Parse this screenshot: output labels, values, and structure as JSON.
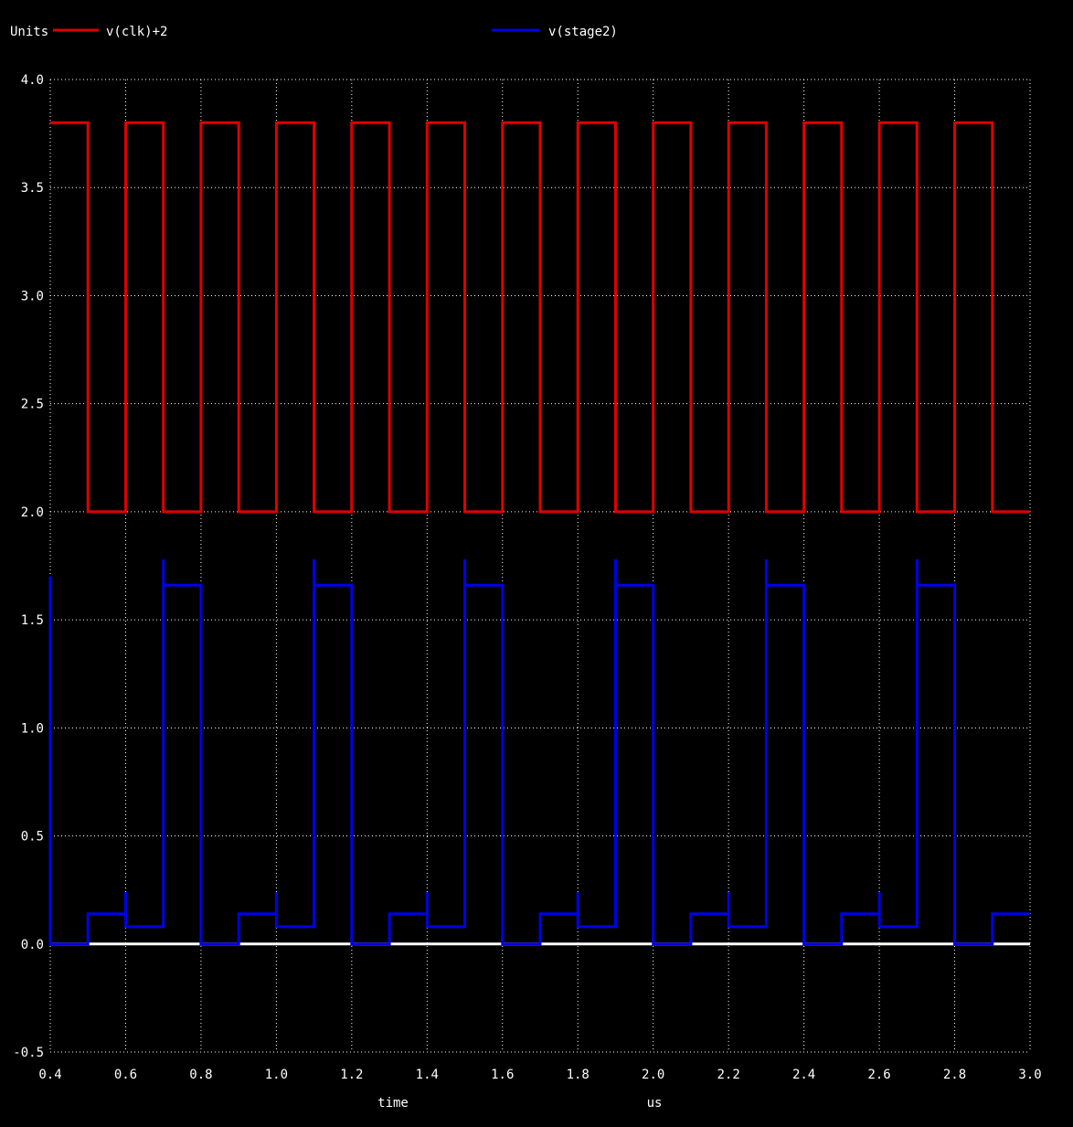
{
  "legend": {
    "units_label": "Units",
    "entries": [
      {
        "name": "v(clk)+2",
        "color": "#e00000"
      },
      {
        "name": "v(stage2)",
        "color": "#0000e8"
      }
    ]
  },
  "axes": {
    "xlabel": "time",
    "xunit": "us"
  },
  "chart_data": {
    "type": "line",
    "title": "",
    "xlabel": "time",
    "xunit": "us",
    "ylabel": "Units",
    "xlim": [
      0.4,
      3.0
    ],
    "ylim": [
      -0.5,
      4.0
    ],
    "x_ticks": [
      "0.4",
      "0.6",
      "0.8",
      "1.0",
      "1.2",
      "1.4",
      "1.6",
      "1.8",
      "2.0",
      "2.2",
      "2.4",
      "2.6",
      "2.8",
      "3.0"
    ],
    "y_ticks": [
      "-0.5",
      "0.0",
      "0.5",
      "1.0",
      "1.5",
      "2.0",
      "2.5",
      "3.0",
      "3.5",
      "4.0"
    ],
    "grid": true,
    "background": "#000000",
    "zero_line_color": "#ffffff",
    "legend_position": "top",
    "series": [
      {
        "name": "v(clk)+2",
        "color": "#e00000",
        "step": true,
        "points": [
          [
            0.4,
            3.8
          ],
          [
            0.5,
            3.8
          ],
          [
            0.5,
            2.0
          ],
          [
            0.6,
            2.0
          ],
          [
            0.6,
            3.8
          ],
          [
            0.7,
            3.8
          ],
          [
            0.7,
            2.0
          ],
          [
            0.8,
            2.0
          ],
          [
            0.8,
            3.8
          ],
          [
            0.9,
            3.8
          ],
          [
            0.9,
            2.0
          ],
          [
            1.0,
            2.0
          ],
          [
            1.0,
            3.8
          ],
          [
            1.1,
            3.8
          ],
          [
            1.1,
            2.0
          ],
          [
            1.2,
            2.0
          ],
          [
            1.2,
            3.8
          ],
          [
            1.3,
            3.8
          ],
          [
            1.3,
            2.0
          ],
          [
            1.4,
            2.0
          ],
          [
            1.4,
            3.8
          ],
          [
            1.5,
            3.8
          ],
          [
            1.5,
            2.0
          ],
          [
            1.6,
            2.0
          ],
          [
            1.6,
            3.8
          ],
          [
            1.7,
            3.8
          ],
          [
            1.7,
            2.0
          ],
          [
            1.8,
            2.0
          ],
          [
            1.8,
            3.8
          ],
          [
            1.9,
            3.8
          ],
          [
            1.9,
            2.0
          ],
          [
            2.0,
            2.0
          ],
          [
            2.0,
            3.8
          ],
          [
            2.1,
            3.8
          ],
          [
            2.1,
            2.0
          ],
          [
            2.2,
            2.0
          ],
          [
            2.2,
            3.8
          ],
          [
            2.3,
            3.8
          ],
          [
            2.3,
            2.0
          ],
          [
            2.4,
            2.0
          ],
          [
            2.4,
            3.8
          ],
          [
            2.5,
            3.8
          ],
          [
            2.5,
            2.0
          ],
          [
            2.6,
            2.0
          ],
          [
            2.6,
            3.8
          ],
          [
            2.7,
            3.8
          ],
          [
            2.7,
            2.0
          ],
          [
            2.8,
            2.0
          ],
          [
            2.8,
            3.8
          ],
          [
            2.9,
            3.8
          ],
          [
            2.9,
            2.0
          ],
          [
            3.0,
            2.0
          ]
        ]
      },
      {
        "name": "v(stage2)",
        "color": "#0000e8",
        "step": true,
        "points": [
          [
            0.4,
            1.7
          ],
          [
            0.4,
            0.0
          ],
          [
            0.5,
            0.0
          ],
          [
            0.5,
            0.14
          ],
          [
            0.6,
            0.14
          ],
          [
            0.6,
            0.24
          ],
          [
            0.6,
            0.08
          ],
          [
            0.7,
            0.08
          ],
          [
            0.7,
            1.78
          ],
          [
            0.7,
            1.66
          ],
          [
            0.8,
            1.66
          ],
          [
            0.8,
            0.0
          ],
          [
            0.9,
            0.0
          ],
          [
            0.9,
            0.14
          ],
          [
            1.0,
            0.14
          ],
          [
            1.0,
            0.24
          ],
          [
            1.0,
            0.08
          ],
          [
            1.1,
            0.08
          ],
          [
            1.1,
            1.78
          ],
          [
            1.1,
            1.66
          ],
          [
            1.2,
            1.66
          ],
          [
            1.2,
            0.0
          ],
          [
            1.3,
            0.0
          ],
          [
            1.3,
            0.14
          ],
          [
            1.4,
            0.14
          ],
          [
            1.4,
            0.24
          ],
          [
            1.4,
            0.08
          ],
          [
            1.5,
            0.08
          ],
          [
            1.5,
            1.78
          ],
          [
            1.5,
            1.66
          ],
          [
            1.6,
            1.66
          ],
          [
            1.6,
            0.0
          ],
          [
            1.7,
            0.0
          ],
          [
            1.7,
            0.14
          ],
          [
            1.8,
            0.14
          ],
          [
            1.8,
            0.24
          ],
          [
            1.8,
            0.08
          ],
          [
            1.9,
            0.08
          ],
          [
            1.9,
            1.78
          ],
          [
            1.9,
            1.66
          ],
          [
            2.0,
            1.66
          ],
          [
            2.0,
            0.0
          ],
          [
            2.1,
            0.0
          ],
          [
            2.1,
            0.14
          ],
          [
            2.2,
            0.14
          ],
          [
            2.2,
            0.24
          ],
          [
            2.2,
            0.08
          ],
          [
            2.3,
            0.08
          ],
          [
            2.3,
            1.78
          ],
          [
            2.3,
            1.66
          ],
          [
            2.4,
            1.66
          ],
          [
            2.4,
            0.0
          ],
          [
            2.5,
            0.0
          ],
          [
            2.5,
            0.14
          ],
          [
            2.6,
            0.14
          ],
          [
            2.6,
            0.24
          ],
          [
            2.6,
            0.08
          ],
          [
            2.7,
            0.08
          ],
          [
            2.7,
            1.78
          ],
          [
            2.7,
            1.66
          ],
          [
            2.8,
            1.66
          ],
          [
            2.8,
            0.0
          ],
          [
            2.9,
            0.0
          ],
          [
            2.9,
            0.14
          ],
          [
            3.0,
            0.14
          ]
        ]
      }
    ]
  }
}
